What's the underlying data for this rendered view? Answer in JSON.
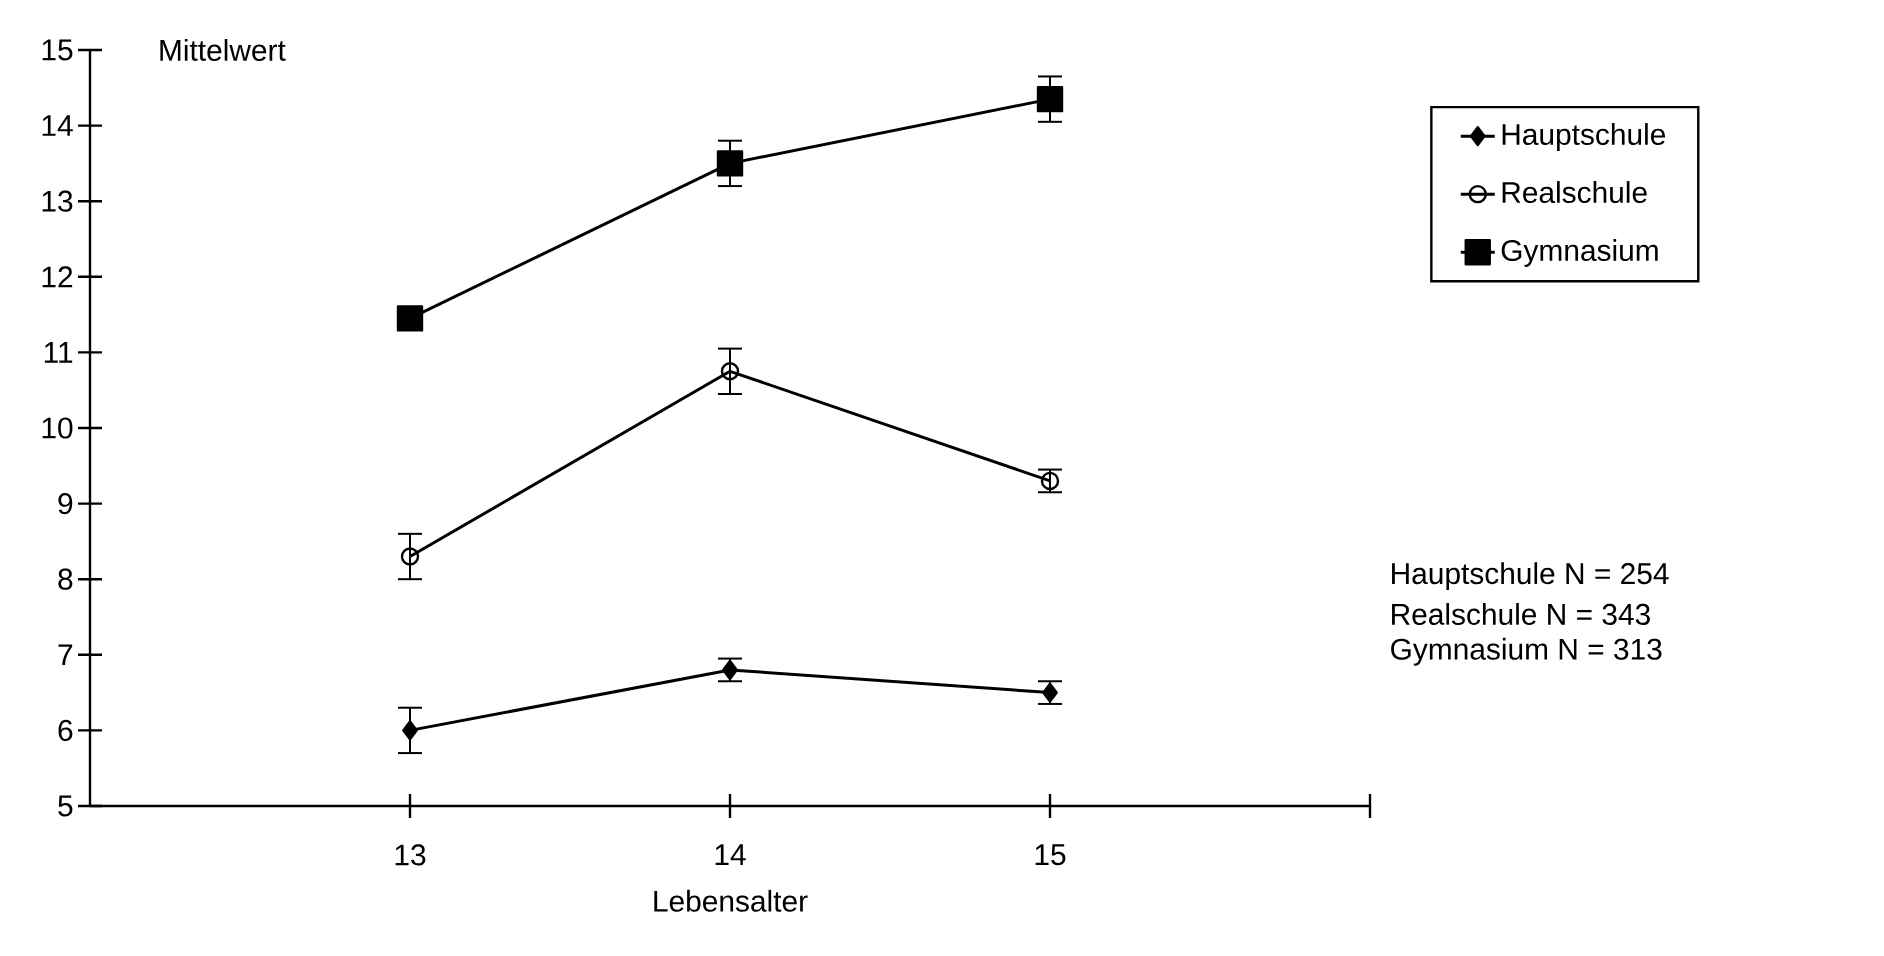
{
  "chart_data": {
    "type": "line",
    "ylabel": "Mittelwert",
    "xlabel": "Lebensalter",
    "x": [
      13,
      14,
      15
    ],
    "xlim": [
      12,
      16
    ],
    "xticks": [
      13,
      14,
      15,
      {
        "value": 16,
        "label": null
      }
    ],
    "ylim": [
      5,
      15
    ],
    "yticks": [
      5,
      6,
      7,
      8,
      9,
      10,
      11,
      12,
      13,
      14,
      15
    ],
    "series": [
      {
        "name": "Hauptschule",
        "color": "#000000",
        "marker": "diamond",
        "values": [
          6.0,
          6.8,
          6.5
        ],
        "errors": [
          0.3,
          0.15,
          0.15
        ]
      },
      {
        "name": "Realschule",
        "color": "#000000",
        "marker": "circle",
        "values": [
          8.3,
          10.75,
          9.3
        ],
        "errors": [
          0.3,
          0.3,
          0.15
        ]
      },
      {
        "name": "Gymnasium",
        "color": "#000000",
        "marker": "square",
        "values": [
          11.45,
          13.5,
          14.35
        ],
        "errors": [
          0.15,
          0.3,
          0.3
        ]
      }
    ],
    "legend": "right",
    "grid": false,
    "line_style": "solid",
    "annotations": [
      "Hauptschule   N = 254",
      "Realschule      N = 343",
      "Gymnasium      N = 313"
    ]
  }
}
